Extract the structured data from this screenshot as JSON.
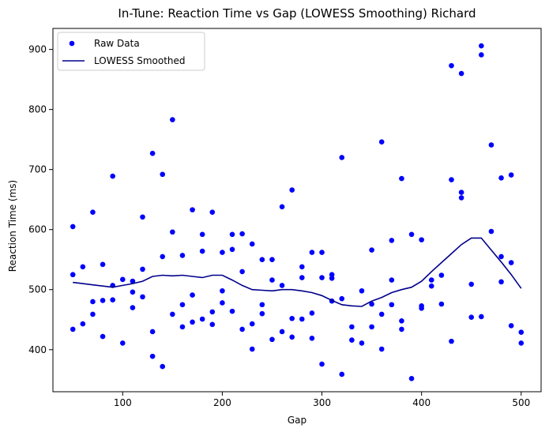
{
  "chart_data": {
    "type": "scatter",
    "title": "In-Tune: Reaction Time vs Gap (LOWESS Smoothing) Richard",
    "xlabel": "Gap",
    "ylabel": "Reaction Time (ms)",
    "xlim": [
      30,
      520
    ],
    "ylim": [
      330,
      935
    ],
    "xticks": [
      100,
      200,
      300,
      400,
      500
    ],
    "yticks": [
      400,
      500,
      600,
      700,
      800,
      900
    ],
    "grid": false,
    "legend_position": "top-left",
    "series": [
      {
        "name": "Raw Data",
        "kind": "scatter",
        "color": "#0000ff",
        "points": [
          [
            50,
            605
          ],
          [
            50,
            525
          ],
          [
            50,
            434
          ],
          [
            60,
            538
          ],
          [
            60,
            443
          ],
          [
            70,
            629
          ],
          [
            70,
            480
          ],
          [
            70,
            459
          ],
          [
            80,
            542
          ],
          [
            80,
            482
          ],
          [
            80,
            422
          ],
          [
            90,
            689
          ],
          [
            90,
            507
          ],
          [
            90,
            483
          ],
          [
            100,
            517
          ],
          [
            100,
            411
          ],
          [
            110,
            514
          ],
          [
            110,
            496
          ],
          [
            110,
            470
          ],
          [
            120,
            621
          ],
          [
            120,
            534
          ],
          [
            120,
            488
          ],
          [
            130,
            727
          ],
          [
            130,
            430
          ],
          [
            130,
            389
          ],
          [
            140,
            692
          ],
          [
            140,
            555
          ],
          [
            140,
            372
          ],
          [
            150,
            783
          ],
          [
            150,
            596
          ],
          [
            150,
            459
          ],
          [
            160,
            557
          ],
          [
            160,
            475
          ],
          [
            160,
            438
          ],
          [
            170,
            633
          ],
          [
            170,
            491
          ],
          [
            170,
            446
          ],
          [
            180,
            592
          ],
          [
            180,
            564
          ],
          [
            180,
            451
          ],
          [
            190,
            629
          ],
          [
            190,
            463
          ],
          [
            190,
            442
          ],
          [
            200,
            562
          ],
          [
            200,
            498
          ],
          [
            200,
            478
          ],
          [
            210,
            592
          ],
          [
            210,
            567
          ],
          [
            210,
            464
          ],
          [
            220,
            593
          ],
          [
            220,
            530
          ],
          [
            220,
            434
          ],
          [
            230,
            576
          ],
          [
            230,
            443
          ],
          [
            230,
            401
          ],
          [
            240,
            550
          ],
          [
            240,
            475
          ],
          [
            240,
            460
          ],
          [
            250,
            550
          ],
          [
            250,
            516
          ],
          [
            250,
            417
          ],
          [
            260,
            638
          ],
          [
            260,
            507
          ],
          [
            260,
            430
          ],
          [
            270,
            666
          ],
          [
            270,
            452
          ],
          [
            270,
            421
          ],
          [
            280,
            538
          ],
          [
            280,
            520
          ],
          [
            280,
            451
          ],
          [
            290,
            562
          ],
          [
            290,
            461
          ],
          [
            290,
            419
          ],
          [
            300,
            562
          ],
          [
            300,
            520
          ],
          [
            300,
            376
          ],
          [
            310,
            525
          ],
          [
            310,
            519
          ],
          [
            310,
            481
          ],
          [
            320,
            720
          ],
          [
            320,
            485
          ],
          [
            320,
            359
          ],
          [
            330,
            438
          ],
          [
            330,
            416
          ],
          [
            340,
            498
          ],
          [
            340,
            411
          ],
          [
            350,
            566
          ],
          [
            350,
            476
          ],
          [
            350,
            438
          ],
          [
            360,
            746
          ],
          [
            360,
            459
          ],
          [
            360,
            401
          ],
          [
            370,
            582
          ],
          [
            370,
            516
          ],
          [
            370,
            475
          ],
          [
            380,
            685
          ],
          [
            380,
            448
          ],
          [
            380,
            434
          ],
          [
            390,
            592
          ],
          [
            390,
            352
          ],
          [
            400,
            583
          ],
          [
            400,
            473
          ],
          [
            400,
            469
          ],
          [
            410,
            516
          ],
          [
            410,
            506
          ],
          [
            420,
            524
          ],
          [
            420,
            476
          ],
          [
            430,
            873
          ],
          [
            430,
            683
          ],
          [
            430,
            414
          ],
          [
            440,
            860
          ],
          [
            440,
            662
          ],
          [
            440,
            653
          ],
          [
            450,
            509
          ],
          [
            450,
            454
          ],
          [
            460,
            906
          ],
          [
            460,
            891
          ],
          [
            460,
            455
          ],
          [
            470,
            741
          ],
          [
            470,
            597
          ],
          [
            480,
            686
          ],
          [
            480,
            555
          ],
          [
            480,
            513
          ],
          [
            490,
            691
          ],
          [
            490,
            545
          ],
          [
            490,
            440
          ],
          [
            500,
            429
          ],
          [
            500,
            411
          ]
        ]
      },
      {
        "name": "LOWESS Smoothed",
        "kind": "line",
        "color": "#00008b",
        "points": [
          [
            50,
            512
          ],
          [
            60,
            510
          ],
          [
            70,
            508
          ],
          [
            80,
            506
          ],
          [
            90,
            504
          ],
          [
            100,
            507
          ],
          [
            110,
            510
          ],
          [
            120,
            514
          ],
          [
            130,
            522
          ],
          [
            140,
            524
          ],
          [
            150,
            523
          ],
          [
            160,
            524
          ],
          [
            170,
            522
          ],
          [
            180,
            520
          ],
          [
            190,
            524
          ],
          [
            200,
            524
          ],
          [
            210,
            516
          ],
          [
            220,
            507
          ],
          [
            230,
            500
          ],
          [
            240,
            499
          ],
          [
            250,
            498
          ],
          [
            260,
            500
          ],
          [
            270,
            500
          ],
          [
            280,
            498
          ],
          [
            290,
            495
          ],
          [
            300,
            490
          ],
          [
            310,
            482
          ],
          [
            320,
            475
          ],
          [
            330,
            473
          ],
          [
            340,
            472
          ],
          [
            350,
            481
          ],
          [
            360,
            487
          ],
          [
            370,
            495
          ],
          [
            380,
            500
          ],
          [
            390,
            504
          ],
          [
            400,
            514
          ],
          [
            410,
            530
          ],
          [
            420,
            545
          ],
          [
            430,
            560
          ],
          [
            440,
            575
          ],
          [
            450,
            586
          ],
          [
            460,
            586
          ],
          [
            470,
            566
          ],
          [
            480,
            546
          ],
          [
            490,
            525
          ],
          [
            500,
            502
          ]
        ]
      }
    ]
  }
}
